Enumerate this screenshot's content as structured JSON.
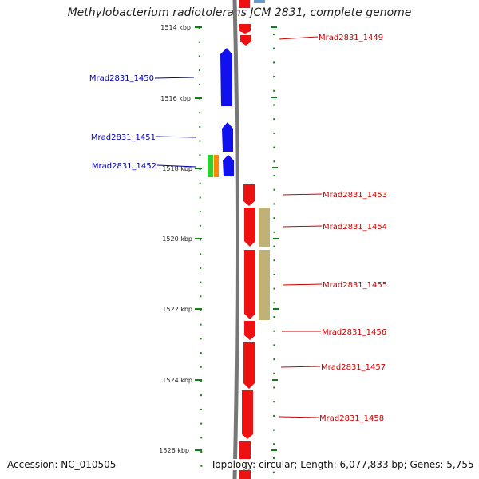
{
  "title": "Methylobacterium radiotolerans JCM 2831, complete genome",
  "footer": {
    "accession": "Accession: NC_010505",
    "stats": "Topology: circular; Length: 6,077,833 bp; Genes: 5,755"
  },
  "colors": {
    "forward_gene": "#ee1111",
    "reverse_gene": "#1111ee",
    "cds_olive": "#c0b277",
    "green_feature": "#33cc33",
    "orange_feature": "#ff8800",
    "blue_top_feature": "#6699cc",
    "backbone": "#777777",
    "tick": "#1a7a1a",
    "label_forward": "#cc0000",
    "label_reverse": "#0000aa"
  },
  "ruler": {
    "labels": [
      "1514 kbp",
      "1516 kbp",
      "1518 kbp",
      "1520 kbp",
      "1522 kbp",
      "1524 kbp",
      "1526 kbp"
    ]
  },
  "genes": [
    {
      "id": "Mrad2831_1449",
      "strand": "forward",
      "kbp_start": 1513.6,
      "kbp_end": 1514.3
    },
    {
      "id": "Mrad2831_1450",
      "strand": "reverse",
      "kbp_start": 1514.6,
      "kbp_end": 1516.3
    },
    {
      "id": "Mrad2831_1451",
      "strand": "reverse",
      "kbp_start": 1516.7,
      "kbp_end": 1517.5
    },
    {
      "id": "Mrad2831_1452",
      "strand": "reverse",
      "kbp_start": 1517.6,
      "kbp_end": 1518.2
    },
    {
      "id": "Mrad2831_1453",
      "strand": "forward",
      "kbp_start": 1518.5,
      "kbp_end": 1519.3
    },
    {
      "id": "Mrad2831_1454",
      "strand": "forward",
      "kbp_start": 1519.3,
      "kbp_end": 1520.4
    },
    {
      "id": "Mrad2831_1455",
      "strand": "forward",
      "kbp_start": 1520.6,
      "kbp_end": 1522.4
    },
    {
      "id": "Mrad2831_1456",
      "strand": "forward",
      "kbp_start": 1522.4,
      "kbp_end": 1522.95
    },
    {
      "id": "Mrad2831_1457",
      "strand": "forward",
      "kbp_start": 1523.0,
      "kbp_end": 1524.3
    },
    {
      "id": "Mrad2831_1458",
      "strand": "forward",
      "kbp_start": 1524.4,
      "kbp_end": 1525.8
    }
  ]
}
